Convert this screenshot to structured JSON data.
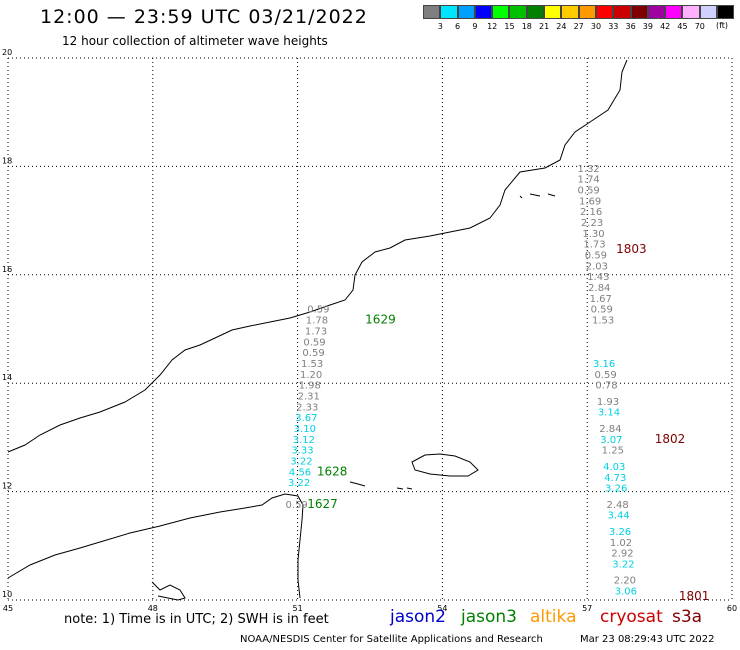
{
  "header": {
    "title": "12:00 — 23:59 UTC 03/21/2022",
    "subtitle": "12 hour collection of altimeter wave heights"
  },
  "colorbar": {
    "colors": [
      "#7f7f7f",
      "#00e5ff",
      "#00a0ff",
      "#0000ff",
      "#00ff00",
      "#00c000",
      "#008000",
      "#ffff00",
      "#ffcc00",
      "#ff9900",
      "#ff0000",
      "#cc0000",
      "#7f0000",
      "#a000a0",
      "#ff00ff",
      "#ffb0ff",
      "#d0d0ff",
      "#000000"
    ],
    "labels": [
      "3",
      "6",
      "9",
      "12",
      "15",
      "18",
      "21",
      "24",
      "27",
      "30",
      "33",
      "36",
      "39",
      "42",
      "45",
      "70"
    ],
    "unit": "(ft)"
  },
  "axes": {
    "x_ticks": [
      "45",
      "48",
      "51",
      "54",
      "57",
      "60"
    ],
    "y_ticks": [
      "20",
      "18",
      "16",
      "14",
      "12",
      "10"
    ],
    "x_range": [
      45,
      60
    ],
    "y_range": [
      10,
      20
    ]
  },
  "tracks": [
    {
      "pass_label": "1629",
      "pass_color": "#007f00",
      "pass_pos": [
        52.4,
        15.1
      ],
      "points": [
        {
          "v": "0.59",
          "lon": 50.75,
          "lat": 11.7,
          "c": "#7f7f7f"
        },
        {
          "v": "3.22",
          "lon": 50.8,
          "lat": 12.1,
          "c": "#00d0e0"
        },
        {
          "v": "4.56",
          "lon": 50.82,
          "lat": 12.3,
          "c": "#00d0e0"
        },
        {
          "v": "3.22",
          "lon": 50.85,
          "lat": 12.5,
          "c": "#00d0e0"
        },
        {
          "v": "3.33",
          "lon": 50.87,
          "lat": 12.7,
          "c": "#00d0e0"
        },
        {
          "v": "3.12",
          "lon": 50.9,
          "lat": 12.9,
          "c": "#00d0e0"
        },
        {
          "v": "3.10",
          "lon": 50.92,
          "lat": 13.1,
          "c": "#00d0e0"
        },
        {
          "v": "3.67",
          "lon": 50.95,
          "lat": 13.3,
          "c": "#00d0e0"
        },
        {
          "v": "2.33",
          "lon": 50.97,
          "lat": 13.5,
          "c": "#7f7f7f"
        },
        {
          "v": "2.31",
          "lon": 51.0,
          "lat": 13.7,
          "c": "#7f7f7f"
        },
        {
          "v": "1.98",
          "lon": 51.02,
          "lat": 13.9,
          "c": "#7f7f7f"
        },
        {
          "v": "1.20",
          "lon": 51.05,
          "lat": 14.1,
          "c": "#7f7f7f"
        },
        {
          "v": "1.53",
          "lon": 51.07,
          "lat": 14.3,
          "c": "#7f7f7f"
        },
        {
          "v": "0.59",
          "lon": 51.1,
          "lat": 14.5,
          "c": "#7f7f7f"
        },
        {
          "v": "0.59",
          "lon": 51.12,
          "lat": 14.7,
          "c": "#7f7f7f"
        },
        {
          "v": "1.73",
          "lon": 51.15,
          "lat": 14.9,
          "c": "#7f7f7f"
        },
        {
          "v": "1.78",
          "lon": 51.17,
          "lat": 15.1,
          "c": "#7f7f7f"
        },
        {
          "v": "0.59",
          "lon": 51.2,
          "lat": 15.3,
          "c": "#7f7f7f"
        }
      ]
    },
    {
      "pass_label": "1803",
      "pass_color": "#7f0000",
      "pass_pos": [
        57.6,
        16.4
      ],
      "points": [
        {
          "v": "1.32",
          "lon": 56.8,
          "lat": 17.9,
          "c": "#7f7f7f"
        },
        {
          "v": "1.74",
          "lon": 56.8,
          "lat": 17.7,
          "c": "#7f7f7f"
        },
        {
          "v": "0.59",
          "lon": 56.8,
          "lat": 17.5,
          "c": "#7f7f7f"
        },
        {
          "v": "1.69",
          "lon": 56.83,
          "lat": 17.3,
          "c": "#7f7f7f"
        },
        {
          "v": "2.16",
          "lon": 56.85,
          "lat": 17.1,
          "c": "#7f7f7f"
        },
        {
          "v": "2.23",
          "lon": 56.87,
          "lat": 16.9,
          "c": "#7f7f7f"
        },
        {
          "v": "1.30",
          "lon": 56.9,
          "lat": 16.7,
          "c": "#7f7f7f"
        },
        {
          "v": "1.73",
          "lon": 56.92,
          "lat": 16.5,
          "c": "#7f7f7f"
        },
        {
          "v": "0.59",
          "lon": 56.95,
          "lat": 16.3,
          "c": "#7f7f7f"
        },
        {
          "v": "2.03",
          "lon": 56.97,
          "lat": 16.1,
          "c": "#7f7f7f"
        },
        {
          "v": "1.43",
          "lon": 57.0,
          "lat": 15.9,
          "c": "#7f7f7f"
        },
        {
          "v": "2.84",
          "lon": 57.02,
          "lat": 15.7,
          "c": "#7f7f7f"
        },
        {
          "v": "1.67",
          "lon": 57.05,
          "lat": 15.5,
          "c": "#7f7f7f"
        },
        {
          "v": "0.59",
          "lon": 57.07,
          "lat": 15.3,
          "c": "#7f7f7f"
        },
        {
          "v": "1.53",
          "lon": 57.1,
          "lat": 15.1,
          "c": "#7f7f7f"
        }
      ]
    },
    {
      "pass_label": "1802",
      "pass_color": "#7f0000",
      "pass_pos": [
        58.4,
        12.9
      ],
      "points": [
        {
          "v": "3.16",
          "lon": 57.12,
          "lat": 14.3,
          "c": "#00d0e0"
        },
        {
          "v": "0.59",
          "lon": 57.15,
          "lat": 14.1,
          "c": "#7f7f7f"
        },
        {
          "v": "0.78",
          "lon": 57.17,
          "lat": 13.9,
          "c": "#7f7f7f"
        },
        {
          "v": "1.93",
          "lon": 57.2,
          "lat": 13.6,
          "c": "#7f7f7f"
        },
        {
          "v": "3.14",
          "lon": 57.22,
          "lat": 13.4,
          "c": "#00d0e0"
        },
        {
          "v": "2.84",
          "lon": 57.25,
          "lat": 13.1,
          "c": "#7f7f7f"
        },
        {
          "v": "3.07",
          "lon": 57.27,
          "lat": 12.9,
          "c": "#00d0e0"
        },
        {
          "v": "1.25",
          "lon": 57.3,
          "lat": 12.7,
          "c": "#7f7f7f"
        },
        {
          "v": "4.03",
          "lon": 57.33,
          "lat": 12.4,
          "c": "#00d0e0"
        },
        {
          "v": "4.73",
          "lon": 57.35,
          "lat": 12.2,
          "c": "#00d0e0"
        },
        {
          "v": "3.26",
          "lon": 57.37,
          "lat": 12.0,
          "c": "#00d0e0"
        },
        {
          "v": "2.48",
          "lon": 57.4,
          "lat": 11.7,
          "c": "#7f7f7f"
        },
        {
          "v": "3.44",
          "lon": 57.42,
          "lat": 11.5,
          "c": "#00d0e0"
        }
      ]
    },
    {
      "pass_label": "1801",
      "pass_color": "#7f0000",
      "pass_pos": [
        58.9,
        10.0
      ],
      "points": [
        {
          "v": "3.26",
          "lon": 57.45,
          "lat": 11.2,
          "c": "#00d0e0"
        },
        {
          "v": "1.02",
          "lon": 57.47,
          "lat": 11.0,
          "c": "#7f7f7f"
        },
        {
          "v": "2.92",
          "lon": 57.5,
          "lat": 10.8,
          "c": "#7f7f7f"
        },
        {
          "v": "3.22",
          "lon": 57.52,
          "lat": 10.6,
          "c": "#00d0e0"
        },
        {
          "v": "2.20",
          "lon": 57.55,
          "lat": 10.3,
          "c": "#7f7f7f"
        },
        {
          "v": "3.06",
          "lon": 57.57,
          "lat": 10.1,
          "c": "#00d0e0"
        }
      ]
    }
  ],
  "pass_labels_extra": [
    {
      "label": "1628",
      "color": "#007f00",
      "pos": [
        51.4,
        12.3
      ]
    },
    {
      "label": "1627",
      "color": "#007f00",
      "pos": [
        51.2,
        11.7
      ]
    }
  ],
  "footer": {
    "note": "note:  1) Time is in UTC;  2) SWH is in feet",
    "legend": [
      {
        "name": "jason2",
        "color": "#0000cc"
      },
      {
        "name": "jason3",
        "color": "#008000"
      },
      {
        "name": "altika",
        "color": "#ff9900"
      },
      {
        "name": "cryosat",
        "color": "#cc0000"
      },
      {
        "name": "s3a",
        "color": "#7f0000"
      }
    ],
    "credit": "NOAA/NESDIS Center for Satellite Applications and Research",
    "timestamp": "Mar 23 08:29:43 UTC 2022"
  }
}
